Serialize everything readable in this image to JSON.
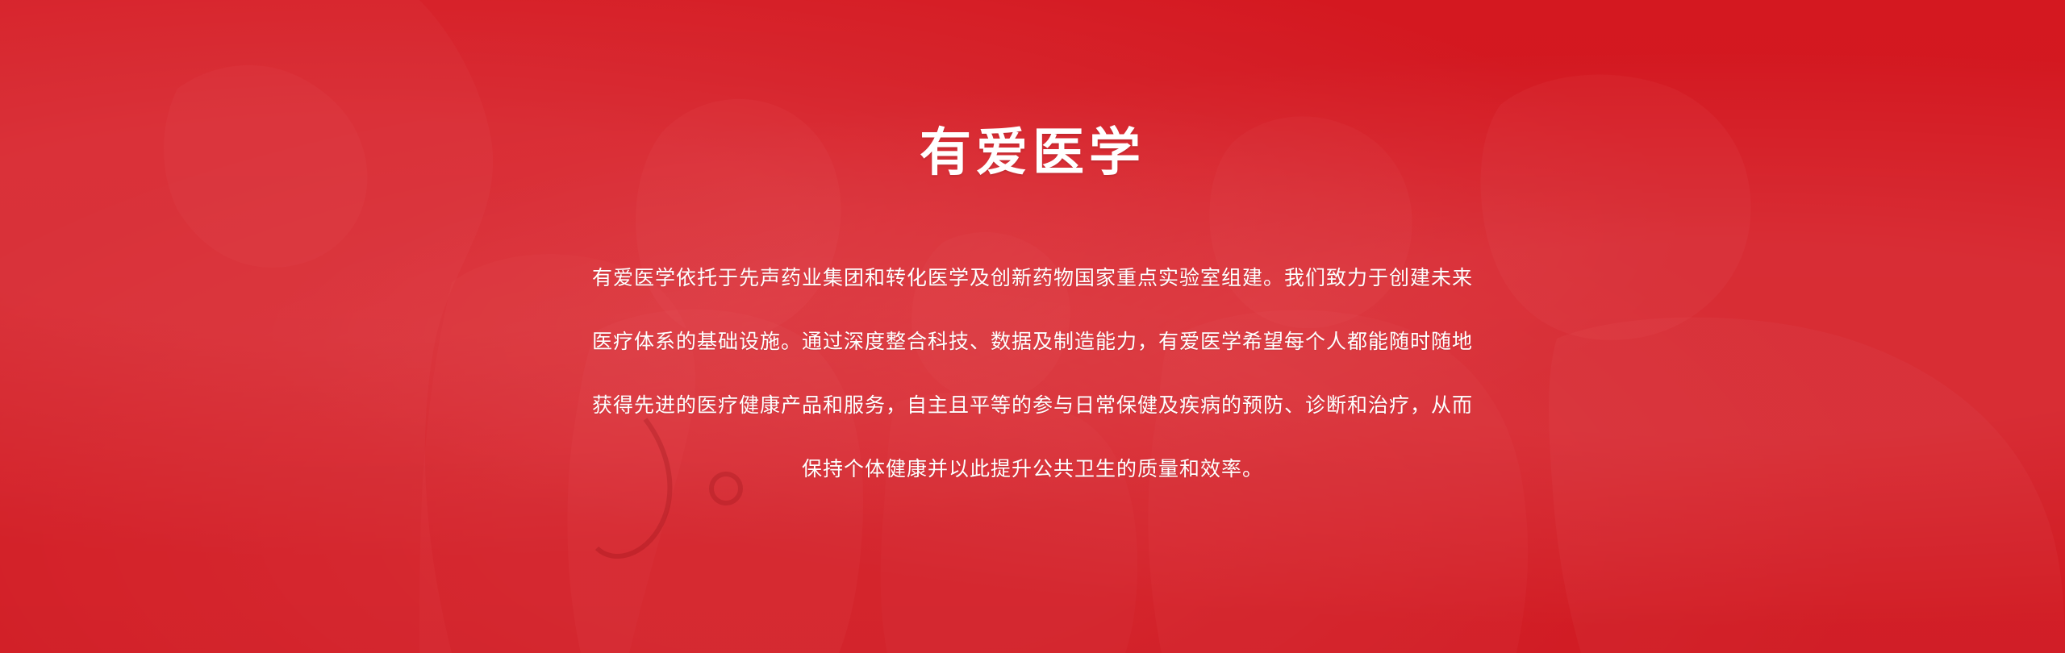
{
  "hero": {
    "title": "有爱医学",
    "paragraph_lines": [
      "有爱医学依托于先声药业集团和转化医学及创新药物国家重点实验室组建。我们致力于创建未来",
      "医疗体系的基础设施。通过深度整合科技、数据及制造能力，有爱医学希望每个人都能随时随地",
      "获得先进的医疗健康产品和服务，自主且平等的参与日常保健及疾病的预防、诊断和治疗，从而",
      "保持个体健康并以此提升公共卫生的质量和效率。"
    ],
    "colors": {
      "background": "#e8323f",
      "text": "#ffffff"
    }
  }
}
